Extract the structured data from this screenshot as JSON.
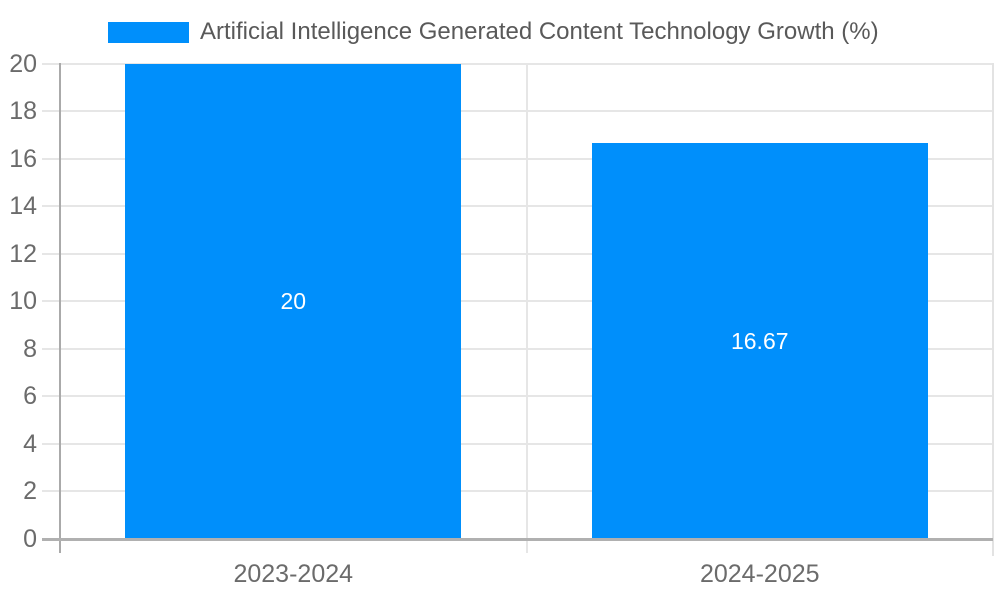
{
  "chart_data": {
    "type": "bar",
    "title": "Artificial Intelligence Generated Content Technology Growth (%)",
    "legend": {
      "position": "top",
      "entries": [
        {
          "label": "Artificial Intelligence Generated Content Technology Growth (%)",
          "swatch_color": "#008ffb"
        }
      ]
    },
    "categories": [
      "2023-2024",
      "2024-2025"
    ],
    "series": [
      {
        "name": "Artificial Intelligence Generated Content Technology Growth (%)",
        "values": [
          20,
          16.67
        ]
      }
    ],
    "bar_value_labels": [
      "20",
      "16.67"
    ],
    "xlabel": "",
    "ylabel": "",
    "ylim": [
      0,
      20
    ],
    "yticks": [
      0,
      2,
      4,
      6,
      8,
      10,
      12,
      14,
      16,
      18,
      20
    ],
    "grid": true,
    "colors": {
      "bar_fill": "#008ffb",
      "bar_label_text": "#ffffff",
      "axis_line": "#aaaaaa",
      "bottom_axis_line": "#b0b0b0",
      "gridline": "#e6e6e6",
      "plot_right_border": "#e3e3e3",
      "tick_text": "#6b6b6b",
      "legend_text": "#595959",
      "background": "#ffffff"
    }
  }
}
